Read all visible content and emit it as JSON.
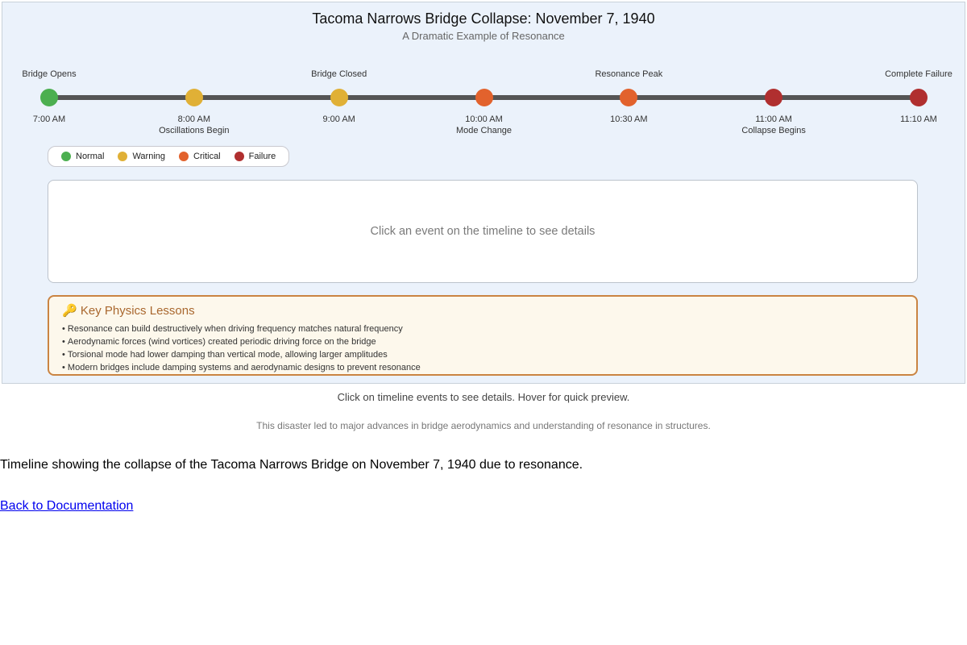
{
  "header": {
    "title": "Tacoma Narrows Bridge Collapse: November 7, 1940",
    "subtitle": "A Dramatic Example of Resonance"
  },
  "timeline": {
    "line_color": "#555555",
    "events": [
      {
        "time": "7:00 AM",
        "label": "Bridge Opens",
        "status": "normal",
        "color": "#4caf50",
        "label_position": "above"
      },
      {
        "time": "8:00 AM",
        "label": "Oscillations Begin",
        "status": "warning",
        "color": "#e0b036",
        "label_position": "below"
      },
      {
        "time": "9:00 AM",
        "label": "Bridge Closed",
        "status": "warning",
        "color": "#e0b036",
        "label_position": "above"
      },
      {
        "time": "10:00 AM",
        "label": "Mode Change",
        "status": "critical",
        "color": "#e2622d",
        "label_position": "below"
      },
      {
        "time": "10:30 AM",
        "label": "Resonance Peak",
        "status": "critical",
        "color": "#e2622d",
        "label_position": "above"
      },
      {
        "time": "11:00 AM",
        "label": "Collapse Begins",
        "status": "failure",
        "color": "#b02f2f",
        "label_position": "below"
      },
      {
        "time": "11:10 AM",
        "label": "Complete Failure",
        "status": "failure",
        "color": "#b02f2f",
        "label_position": "above"
      }
    ]
  },
  "legend": {
    "items": [
      {
        "label": "Normal",
        "color": "#4caf50"
      },
      {
        "label": "Warning",
        "color": "#e0b036"
      },
      {
        "label": "Critical",
        "color": "#e2622d"
      },
      {
        "label": "Failure",
        "color": "#b02f2f"
      }
    ]
  },
  "detail_box": {
    "placeholder": "Click an event on the timeline to see details"
  },
  "physics": {
    "icon": "🔑",
    "title": "Key Physics Lessons",
    "bullets": [
      "Resonance can build destructively when driving frequency matches natural frequency",
      "Aerodynamic forces (wind vortices) created periodic driving force on the bridge",
      "Torsional mode had lower damping than vertical mode, allowing larger amplitudes",
      "Modern bridges include damping systems and aerodynamic designs to prevent resonance"
    ]
  },
  "footer": {
    "instructions": "Click on timeline events to see details. Hover for quick preview.",
    "note": "This disaster led to major advances in bridge aerodynamics and understanding of resonance in structures.",
    "caption": "Timeline showing the collapse of the Tacoma Narrows Bridge on November 7, 1940 due to resonance.",
    "link_label": "Back to Documentation"
  }
}
